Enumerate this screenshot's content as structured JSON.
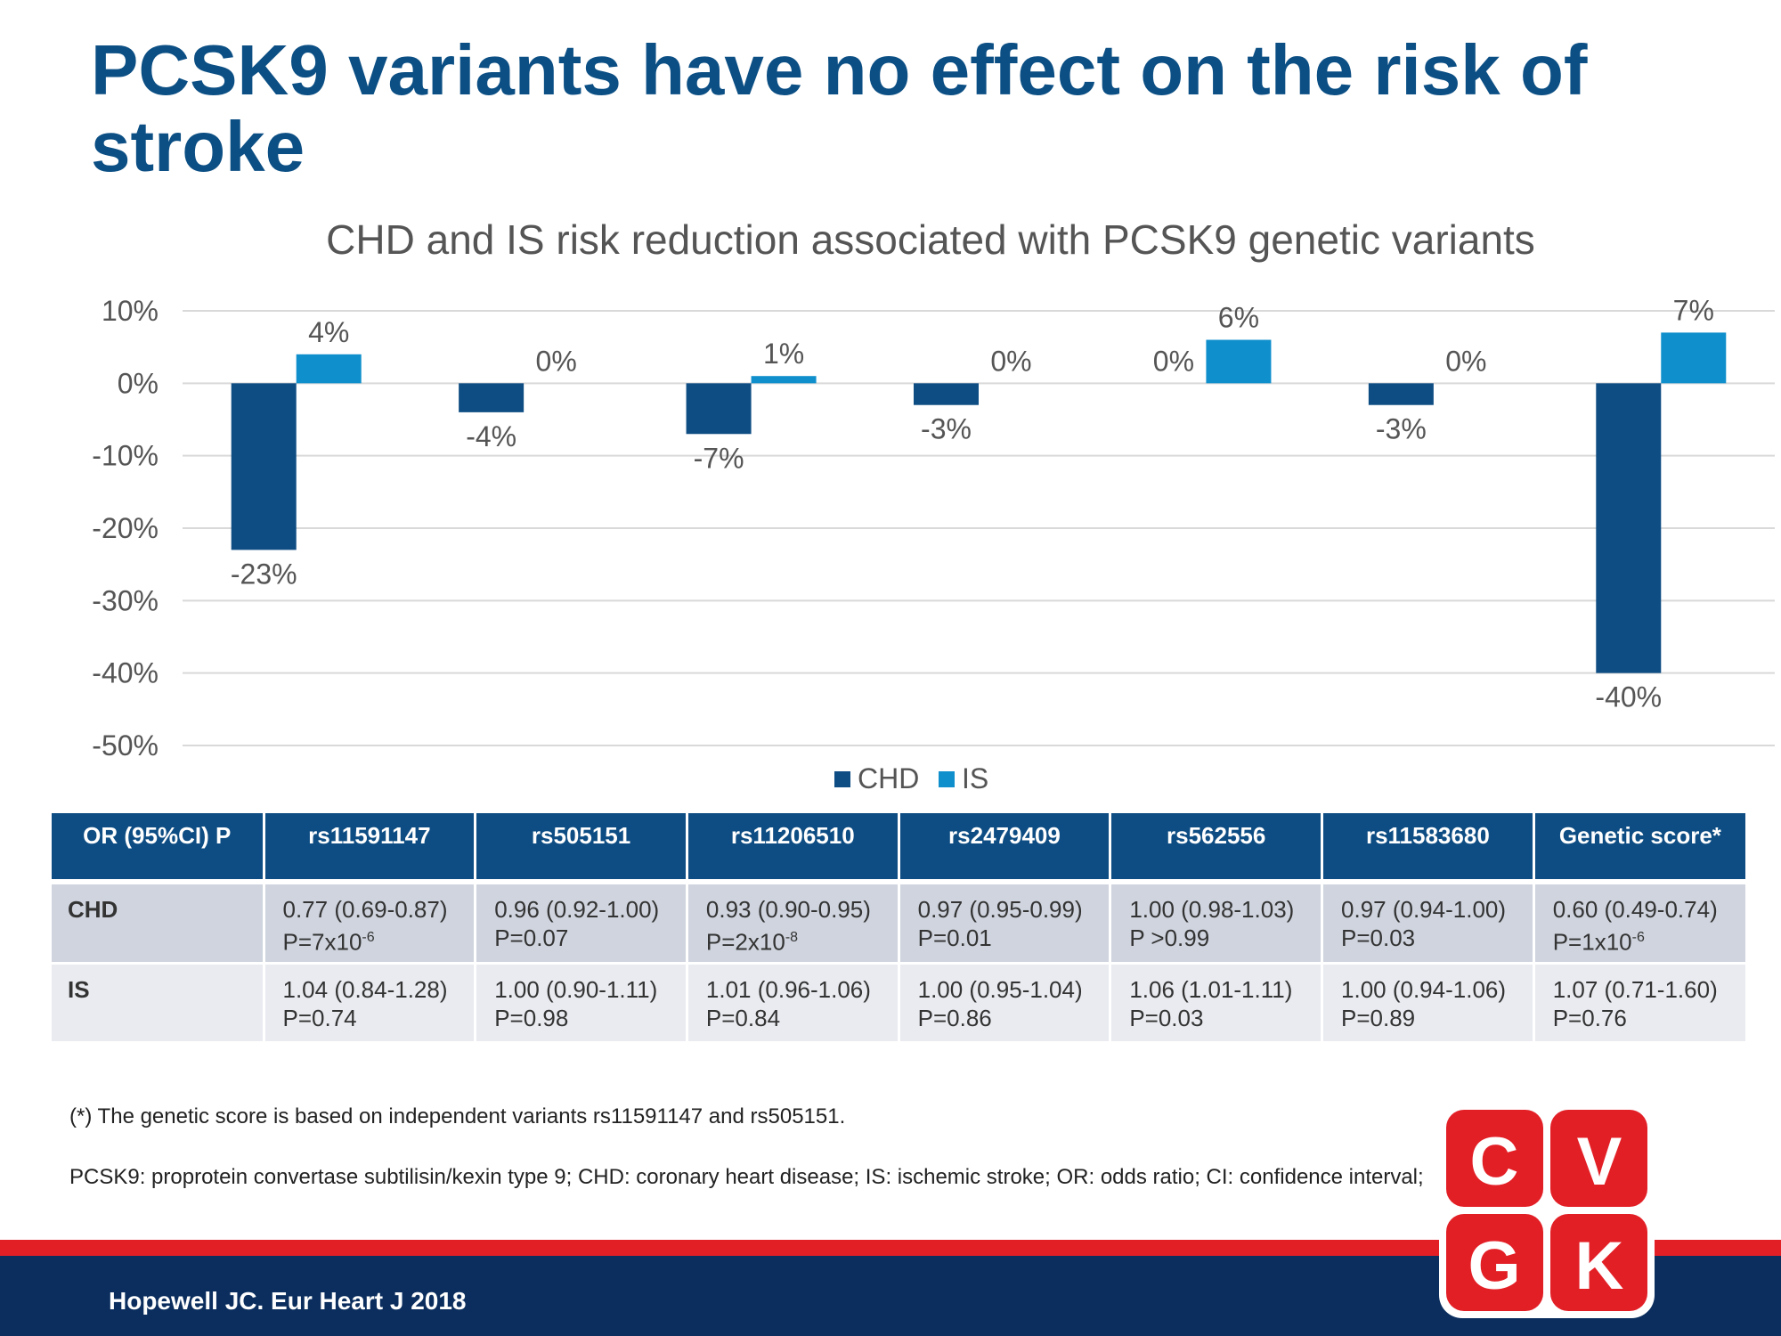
{
  "title": "PCSK9 variants have no effect on the risk of stroke",
  "chart_data": {
    "type": "bar",
    "title": "CHD and IS risk reduction associated with PCSK9 genetic variants",
    "categories": [
      "rs11591147",
      "rs505151",
      "rs11206510",
      "rs2479409",
      "rs562556",
      "rs11583680",
      "Genetic score*"
    ],
    "series": [
      {
        "name": "CHD",
        "color": "#0e4d83",
        "values": [
          -23,
          -4,
          -7,
          -3,
          0,
          -3,
          -40
        ],
        "labels": [
          "-23%",
          "-4%",
          "-7%",
          "-3%",
          "0%",
          "-3%",
          "-40%"
        ]
      },
      {
        "name": "IS",
        "color": "#0f8fcc",
        "values": [
          4,
          0,
          1,
          0,
          6,
          0,
          7
        ],
        "labels": [
          "4%",
          "0%",
          "1%",
          "0%",
          "6%",
          "0%",
          "7%"
        ]
      }
    ],
    "ylim": [
      -50,
      10
    ],
    "yticks": [
      10,
      0,
      -10,
      -20,
      -30,
      -40,
      -50
    ],
    "ytick_labels": [
      "10%",
      "0%",
      "-10%",
      "-20%",
      "-30%",
      "-40%",
      "-50%"
    ],
    "grid": true,
    "legend": "bottom-center"
  },
  "table": {
    "header_label": "OR (95%CI)  P",
    "columns": [
      "rs11591147",
      "rs505151",
      "rs11206510",
      "rs2479409",
      "rs562556",
      "rs11583680",
      "Genetic score*"
    ],
    "rows": [
      {
        "label": "CHD",
        "cells": [
          {
            "or": "0.77 (0.69-0.87)",
            "p": "P=7x10",
            "exp": "-6"
          },
          {
            "or": "0.96 (0.92-1.00)",
            "p": "P=0.07",
            "exp": ""
          },
          {
            "or": "0.93 (0.90-0.95)",
            "p": "P=2x10",
            "exp": "-8"
          },
          {
            "or": "0.97 (0.95-0.99)",
            "p": "P=0.01",
            "exp": ""
          },
          {
            "or": "1.00 (0.98-1.03)",
            "p": "P >0.99",
            "exp": ""
          },
          {
            "or": "0.97 (0.94-1.00)",
            "p": "P=0.03",
            "exp": ""
          },
          {
            "or": "0.60 (0.49-0.74)",
            "p": "P=1x10",
            "exp": "-6"
          }
        ]
      },
      {
        "label": "IS",
        "cells": [
          {
            "or": "1.04 (0.84-1.28)",
            "p": "P=0.74",
            "exp": ""
          },
          {
            "or": "1.00 (0.90-1.11)",
            "p": "P=0.98",
            "exp": ""
          },
          {
            "or": "1.01 (0.96-1.06)",
            "p": "P=0.84",
            "exp": ""
          },
          {
            "or": "1.00 (0.95-1.04)",
            "p": "P=0.86",
            "exp": ""
          },
          {
            "or": "1.06 (1.01-1.11)",
            "p": "P=0.03",
            "exp": ""
          },
          {
            "or": "1.00 (0.94-1.06)",
            "p": "P=0.89",
            "exp": ""
          },
          {
            "or": "1.07 (0.71-1.60)",
            "p": "P=0.76",
            "exp": ""
          }
        ]
      }
    ]
  },
  "footnote": "(*) The genetic score is based on independent variants  rs11591147  and rs505151.",
  "abbreviations": "PCSK9: proprotein convertase  subtilisin/kexin type 9; CHD:  coronary heart disease; IS:  ischemic stroke; OR:  odds ratio; CI:  confidence interval;",
  "citation": "Hopewell JC. Eur Heart J 2018",
  "logo": {
    "letters": [
      "C",
      "V",
      "G",
      "K"
    ],
    "color": "#e31f26"
  }
}
